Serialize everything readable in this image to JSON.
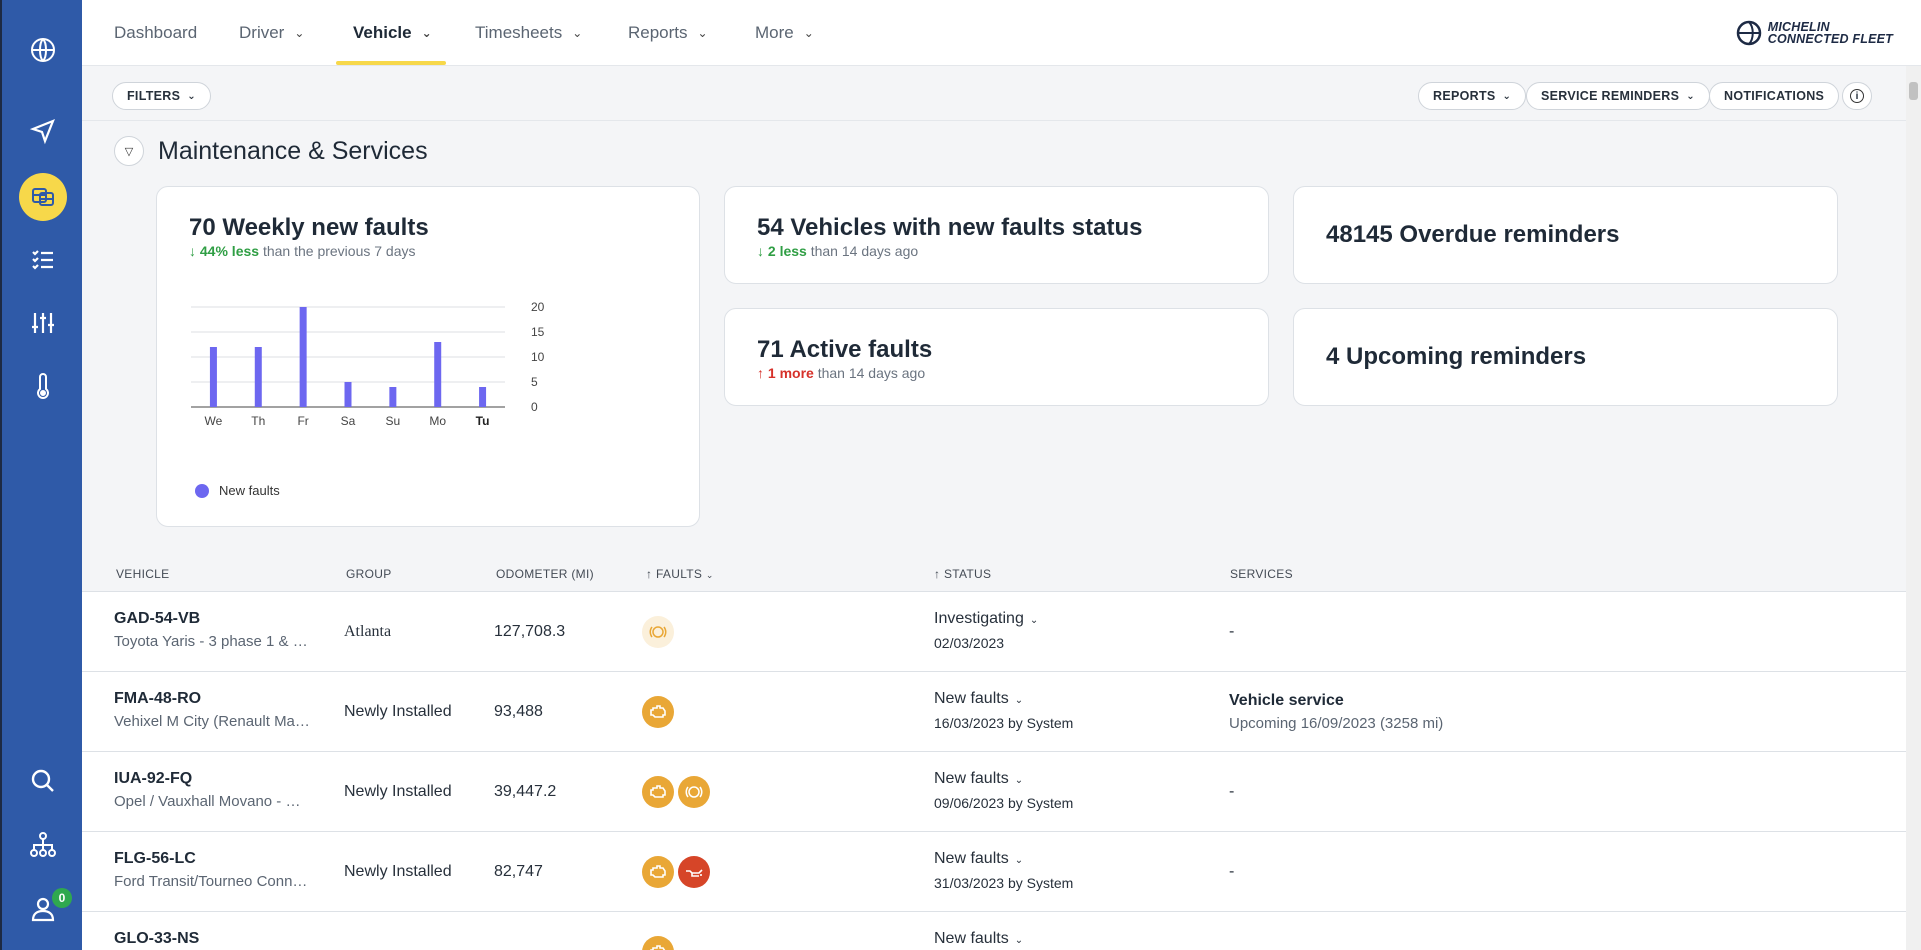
{
  "nav": {
    "items": [
      {
        "label": "Dashboard",
        "dropdown": false
      },
      {
        "label": "Driver",
        "dropdown": true
      },
      {
        "label": "Vehicle",
        "dropdown": true,
        "active": true
      },
      {
        "label": "Timesheets",
        "dropdown": true
      },
      {
        "label": "Reports",
        "dropdown": true
      },
      {
        "label": "More",
        "dropdown": true
      }
    ],
    "logo_line1": "MICHELIN",
    "logo_line2": "CONNECTED FLEET"
  },
  "sidebar": {
    "icons": [
      "globe-icon",
      "navigation-icon",
      "vehicles-icon",
      "checklist-icon",
      "sliders-icon",
      "thermometer-icon",
      "search-icon",
      "hierarchy-icon",
      "user-icon"
    ],
    "notification_count": "0"
  },
  "filterbar": {
    "filters": "FILTERS",
    "reports": "REPORTS",
    "service_reminders": "SERVICE REMINDERS",
    "notifications": "NOTIFICATIONS",
    "info": "i"
  },
  "section": {
    "title": "Maintenance & Services"
  },
  "cards": {
    "weekly_faults": {
      "title": "70 Weekly new faults",
      "delta": "44% less",
      "delta_rest": "than the previous 7 days"
    },
    "vehicles_new_faults": {
      "title": "54 Vehicles with new faults status",
      "delta": "2 less",
      "delta_rest": "than 14 days ago"
    },
    "overdue": {
      "title": "48145 Overdue reminders"
    },
    "active_faults": {
      "title": "71 Active faults",
      "delta": "1 more",
      "delta_rest": "than 14 days ago"
    },
    "upcoming": {
      "title": "4 Upcoming reminders"
    }
  },
  "chart_data": {
    "type": "bar",
    "categories": [
      "We",
      "Th",
      "Fr",
      "Sa",
      "Su",
      "Mo",
      "Tu"
    ],
    "series": [
      {
        "name": "New faults",
        "values": [
          12,
          12,
          20,
          5,
          4,
          13,
          4
        ]
      }
    ],
    "ylim": [
      0,
      20
    ],
    "yticks": [
      0,
      5,
      10,
      15,
      20
    ],
    "grid": true,
    "legend": "bottom-left",
    "bar_color": "#6d67f0",
    "bold_category": "Tu"
  },
  "table": {
    "headers": {
      "vehicle": "VEHICLE",
      "group": "GROUP",
      "odometer": "ODOMETER (MI)",
      "faults": "FAULTS",
      "status": "STATUS",
      "services": "SERVICES"
    },
    "rows": [
      {
        "plate": "GAD-54-VB",
        "model": "Toyota Yaris - 3 phase 1 & …",
        "group": "Atlanta",
        "odometer": "127,708.3",
        "faults": [
          "light"
        ],
        "status": "Investigating",
        "status_date": "02/03/2023",
        "service_title": "",
        "service_sub": "",
        "service_dash": "-"
      },
      {
        "plate": "FMA-48-RO",
        "model": "Vehixel M City (Renault Ma…",
        "group": "Newly Installed",
        "odometer": "93,488",
        "faults": [
          "orange-engine"
        ],
        "status": "New faults",
        "status_date": "16/03/2023 by System",
        "service_title": "Vehicle service",
        "service_sub": "Upcoming 16/09/2023 (3258 mi)",
        "service_dash": ""
      },
      {
        "plate": "IUA-92-FQ",
        "model": "Opel / Vauxhall Movano - …",
        "group": "Newly Installed",
        "odometer": "39,447.2",
        "faults": [
          "orange-engine",
          "orange-brake"
        ],
        "status": "New faults",
        "status_date": "09/06/2023 by System",
        "service_title": "",
        "service_sub": "",
        "service_dash": "-"
      },
      {
        "plate": "FLG-56-LC",
        "model": "Ford Transit/Tourneo Conn…",
        "group": "Newly Installed",
        "odometer": "82,747",
        "faults": [
          "orange-engine",
          "red-oil"
        ],
        "status": "New faults",
        "status_date": "31/03/2023 by System",
        "service_title": "",
        "service_sub": "",
        "service_dash": "-"
      },
      {
        "plate": "GLO-33-NS",
        "model": "",
        "group": "",
        "odometer": "",
        "faults": [
          "orange-engine"
        ],
        "status": "New faults",
        "status_date": "",
        "service_title": "",
        "service_sub": "",
        "service_dash": ""
      }
    ]
  }
}
